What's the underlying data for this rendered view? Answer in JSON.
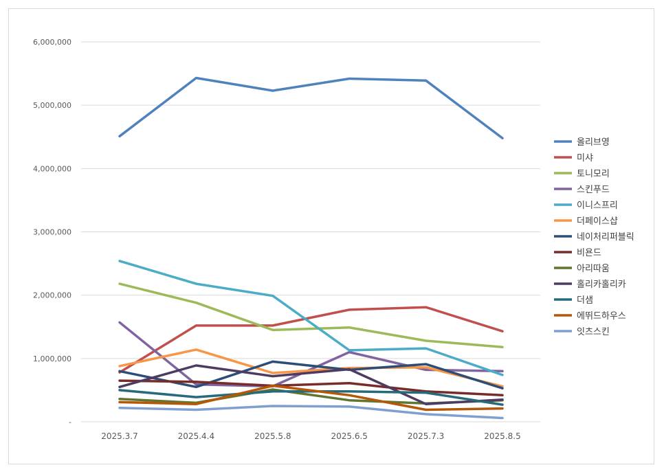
{
  "chart_data": {
    "type": "line",
    "title": "",
    "xlabel": "",
    "ylabel": "",
    "categories": [
      "2025.3.7",
      "2025.4.4",
      "2025.5.8",
      "2025.6.5",
      "2025.7.3",
      "2025.8.5"
    ],
    "ylim": [
      0,
      6000000
    ],
    "yticks": [
      0,
      1000000,
      2000000,
      3000000,
      4000000,
      5000000,
      6000000
    ],
    "ytick_labels": [
      "-",
      "1,000,000",
      "2,000,000",
      "3,000,000",
      "4,000,000",
      "5,000,000",
      "6,000,000"
    ],
    "grid": true,
    "legend_position": "right",
    "series": [
      {
        "name": "올리브영",
        "color": "#4f81bd",
        "values": [
          4510000,
          5430000,
          5230000,
          5420000,
          5390000,
          4480000
        ]
      },
      {
        "name": "미샤",
        "color": "#c0504d",
        "values": [
          780000,
          1520000,
          1520000,
          1770000,
          1810000,
          1430000
        ]
      },
      {
        "name": "토니모리",
        "color": "#9bbb59",
        "values": [
          2180000,
          1880000,
          1450000,
          1490000,
          1280000,
          1180000
        ]
      },
      {
        "name": "스킨푸드",
        "color": "#8064a2",
        "values": [
          1570000,
          590000,
          560000,
          1100000,
          820000,
          800000
        ]
      },
      {
        "name": "이니스프리",
        "color": "#4bacc6",
        "values": [
          2540000,
          2180000,
          1990000,
          1130000,
          1160000,
          740000
        ]
      },
      {
        "name": "더페이스샵",
        "color": "#f79646",
        "values": [
          880000,
          1140000,
          770000,
          850000,
          860000,
          560000
        ]
      },
      {
        "name": "네이처리퍼블릭",
        "color": "#2c4d75",
        "values": [
          800000,
          550000,
          950000,
          820000,
          910000,
          530000
        ]
      },
      {
        "name": "비욘드",
        "color": "#772c2a",
        "values": [
          650000,
          630000,
          570000,
          610000,
          480000,
          420000
        ]
      },
      {
        "name": "아리따움",
        "color": "#5f7530",
        "values": [
          360000,
          300000,
          510000,
          340000,
          290000,
          340000
        ]
      },
      {
        "name": "홀리카홀리카",
        "color": "#4d3b62",
        "values": [
          550000,
          890000,
          720000,
          830000,
          280000,
          350000
        ]
      },
      {
        "name": "더샘",
        "color": "#276a7c",
        "values": [
          500000,
          390000,
          480000,
          480000,
          460000,
          270000
        ]
      },
      {
        "name": "에뛰드하우스",
        "color": "#b65708",
        "values": [
          310000,
          280000,
          570000,
          420000,
          190000,
          210000
        ]
      },
      {
        "name": "잇츠스킨",
        "color": "#7f9fd1",
        "values": [
          220000,
          190000,
          250000,
          240000,
          120000,
          60000
        ]
      }
    ]
  }
}
